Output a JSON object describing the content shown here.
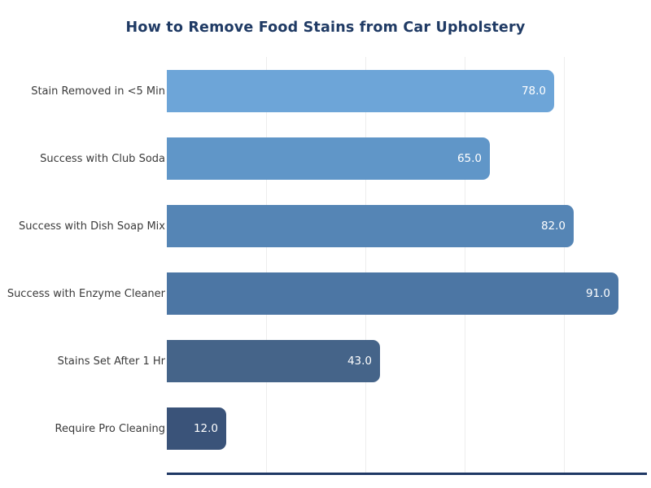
{
  "chart_data": {
    "type": "bar",
    "orientation": "horizontal",
    "title": "How to Remove Food Stains from Car Upholstery",
    "categories": [
      "Stain Removed in <5 Min",
      "Success with Club Soda",
      "Success with Dish Soap Mix",
      "Success with Enzyme Cleaner",
      "Stains Set After 1 Hr",
      "Require Pro Cleaning"
    ],
    "values": [
      78,
      65,
      82,
      91,
      43,
      12
    ],
    "value_labels": [
      "78.0",
      "65.0",
      "82.0",
      "91.0",
      "43.0",
      "12.0"
    ],
    "bar_colors": [
      "#6da5d8",
      "#6096c8",
      "#5585b5",
      "#4c76a4",
      "#456489",
      "#3a5379"
    ],
    "xlabel": "",
    "ylabel": "",
    "xlim": [
      0,
      96.6
    ],
    "gridline_values": [
      20,
      40,
      60,
      80
    ],
    "grid": "vertical only, light gray",
    "legend": "none",
    "colors": {
      "title_color": "#1f3a64",
      "category_label_color": "#3a3a3a",
      "value_label_color": "#ffffff",
      "gridline_color": "#ededed",
      "axis_line_color": "#1f3864",
      "background": "#ffffff"
    }
  }
}
